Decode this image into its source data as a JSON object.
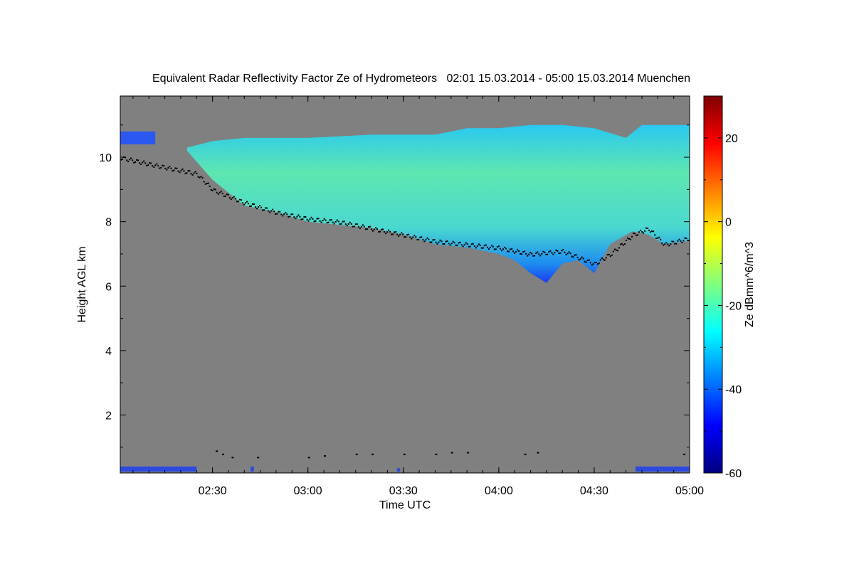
{
  "chart_data": {
    "type": "heatmap",
    "title": "Equivalent Radar Reflectivity Factor Ze of Hydrometeors   02:01 15.03.2014 - 05:00 15.03.2014 Muenchen",
    "xlabel": "Time UTC",
    "ylabel": "Height AGL km",
    "xlim": [
      "02:01",
      "05:00"
    ],
    "ylim": [
      0.2,
      11.9
    ],
    "x_ticks": [
      "02:30",
      "03:00",
      "03:30",
      "04:00",
      "04:30",
      "05:00"
    ],
    "y_ticks": [
      2,
      4,
      6,
      8,
      10
    ],
    "colorbar": {
      "label": "Ze dBmm^6/m^3",
      "range": [
        -60,
        30
      ],
      "ticks": [
        -60,
        -40,
        -20,
        0,
        20
      ]
    },
    "background_color": "#808080",
    "cloud_top_km": [
      [
        "02:22",
        10.3
      ],
      [
        "02:30",
        10.5
      ],
      [
        "02:40",
        10.6
      ],
      [
        "03:00",
        10.6
      ],
      [
        "03:20",
        10.7
      ],
      [
        "03:40",
        10.7
      ],
      [
        "03:50",
        10.9
      ],
      [
        "04:00",
        10.9
      ],
      [
        "04:10",
        11.0
      ],
      [
        "04:20",
        11.0
      ],
      [
        "04:30",
        10.9
      ],
      [
        "04:40",
        10.6
      ],
      [
        "04:45",
        11.0
      ],
      [
        "05:00",
        11.0
      ]
    ],
    "cloud_base_km": [
      [
        "02:22",
        10.2
      ],
      [
        "02:30",
        9.3
      ],
      [
        "02:40",
        8.5
      ],
      [
        "02:50",
        8.3
      ],
      [
        "03:00",
        8.0
      ],
      [
        "03:10",
        7.9
      ],
      [
        "03:20",
        7.8
      ],
      [
        "03:30",
        7.6
      ],
      [
        "03:40",
        7.3
      ],
      [
        "03:50",
        7.2
      ],
      [
        "04:00",
        7.0
      ],
      [
        "04:05",
        6.8
      ],
      [
        "04:10",
        6.4
      ],
      [
        "04:15",
        6.1
      ],
      [
        "04:20",
        6.7
      ],
      [
        "04:25",
        6.8
      ],
      [
        "04:30",
        6.4
      ],
      [
        "04:35",
        7.3
      ],
      [
        "04:42",
        7.7
      ],
      [
        "04:47",
        7.6
      ],
      [
        "04:52",
        7.3
      ],
      [
        "05:00",
        7.4
      ]
    ],
    "upper_patch_km": {
      "x": [
        "02:01",
        "02:12"
      ],
      "base": 10.4,
      "top": 10.8
    },
    "lidar_base_km": [
      [
        "02:01",
        10.0
      ],
      [
        "02:10",
        9.8
      ],
      [
        "02:20",
        9.6
      ],
      [
        "02:25",
        9.5
      ],
      [
        "02:30",
        9.0
      ],
      [
        "02:40",
        8.6
      ],
      [
        "02:50",
        8.3
      ],
      [
        "03:00",
        8.1
      ],
      [
        "03:10",
        8.0
      ],
      [
        "03:20",
        7.8
      ],
      [
        "03:30",
        7.6
      ],
      [
        "03:40",
        7.4
      ],
      [
        "03:50",
        7.3
      ],
      [
        "04:00",
        7.2
      ],
      [
        "04:10",
        7.0
      ],
      [
        "04:20",
        7.1
      ],
      [
        "04:25",
        6.9
      ],
      [
        "04:30",
        6.7
      ],
      [
        "04:35",
        7.0
      ],
      [
        "04:42",
        7.6
      ],
      [
        "04:47",
        7.8
      ],
      [
        "04:52",
        7.3
      ],
      [
        "05:00",
        7.5
      ]
    ],
    "lidar_low_km": [
      [
        "02:31",
        0.9
      ],
      [
        "02:33",
        0.8
      ],
      [
        "02:36",
        0.7
      ],
      [
        "02:44",
        0.7
      ],
      [
        "03:00",
        0.7
      ],
      [
        "03:05",
        0.75
      ],
      [
        "03:15",
        0.8
      ],
      [
        "03:20",
        0.8
      ],
      [
        "03:30",
        0.8
      ],
      [
        "03:40",
        0.8
      ],
      [
        "03:45",
        0.85
      ],
      [
        "03:50",
        0.85
      ],
      [
        "04:08",
        0.8
      ],
      [
        "04:12",
        0.85
      ],
      [
        "04:58",
        0.8
      ]
    ],
    "ground_clutter_km": [
      {
        "x": [
          "02:01",
          "02:25"
        ],
        "height": 0.4
      },
      {
        "x": [
          "04:43",
          "05:00"
        ],
        "height": 0.4
      },
      {
        "x": [
          "02:42",
          "02:43"
        ],
        "height": 0.4
      },
      {
        "x": [
          "03:28",
          "03:29"
        ],
        "height": 0.35
      }
    ]
  }
}
